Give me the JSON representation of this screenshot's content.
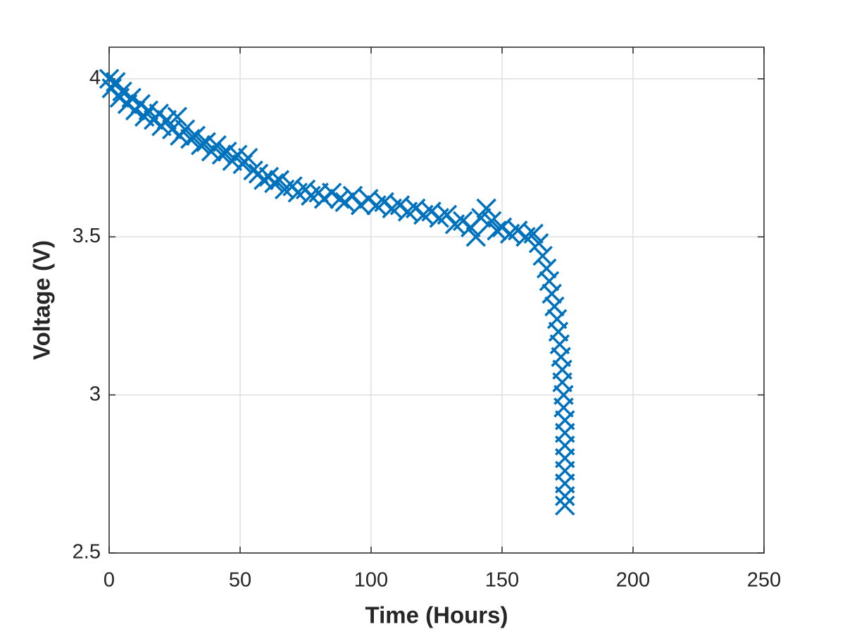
{
  "chart_data": {
    "type": "scatter",
    "marker": "x",
    "color": "#0072bd",
    "xlabel": "Time (Hours)",
    "ylabel": "Voltage (V)",
    "xlim": [
      0,
      250
    ],
    "ylim": [
      2.5,
      4.1
    ],
    "xticks": [
      0,
      50,
      100,
      150,
      200,
      250
    ],
    "yticks": [
      2.5,
      3,
      3.5,
      4
    ],
    "grid": true,
    "x": [
      0,
      1,
      2.5,
      4,
      5,
      7,
      8.5,
      10,
      12,
      13.5,
      15,
      17,
      19,
      20,
      22,
      24,
      26,
      27,
      29,
      31,
      33,
      35,
      37,
      39,
      41,
      43,
      45,
      47,
      49,
      51,
      53,
      55,
      57,
      59,
      61,
      63,
      65,
      67,
      70,
      72,
      75,
      77,
      80,
      82,
      85,
      88,
      90,
      93,
      96,
      99,
      102,
      105,
      108,
      111,
      114,
      117,
      120,
      123,
      126,
      129,
      132,
      135,
      138,
      140,
      142,
      144,
      146,
      148,
      150,
      153,
      156,
      159,
      162,
      164,
      165.5,
      167,
      168,
      169,
      170,
      171,
      171.5,
      172,
      172.5,
      173,
      173,
      173.5,
      173.5,
      174,
      174,
      174,
      174,
      174,
      174,
      174,
      174
    ],
    "values": [
      4.0,
      3.97,
      3.99,
      3.94,
      3.96,
      3.92,
      3.94,
      3.9,
      3.92,
      3.88,
      3.9,
      3.87,
      3.89,
      3.85,
      3.87,
      3.84,
      3.88,
      3.82,
      3.84,
      3.81,
      3.82,
      3.79,
      3.8,
      3.77,
      3.79,
      3.76,
      3.77,
      3.74,
      3.76,
      3.73,
      3.75,
      3.71,
      3.7,
      3.68,
      3.69,
      3.67,
      3.68,
      3.65,
      3.66,
      3.64,
      3.65,
      3.63,
      3.64,
      3.62,
      3.64,
      3.62,
      3.61,
      3.63,
      3.6,
      3.62,
      3.6,
      3.61,
      3.59,
      3.6,
      3.58,
      3.59,
      3.57,
      3.58,
      3.56,
      3.57,
      3.54,
      3.55,
      3.53,
      3.5,
      3.56,
      3.59,
      3.55,
      3.52,
      3.53,
      3.51,
      3.52,
      3.5,
      3.51,
      3.48,
      3.44,
      3.4,
      3.36,
      3.32,
      3.28,
      3.24,
      3.2,
      3.16,
      3.12,
      3.08,
      3.04,
      3.0,
      2.96,
      2.92,
      2.88,
      2.84,
      2.8,
      2.76,
      2.72,
      2.68,
      2.65
    ]
  }
}
